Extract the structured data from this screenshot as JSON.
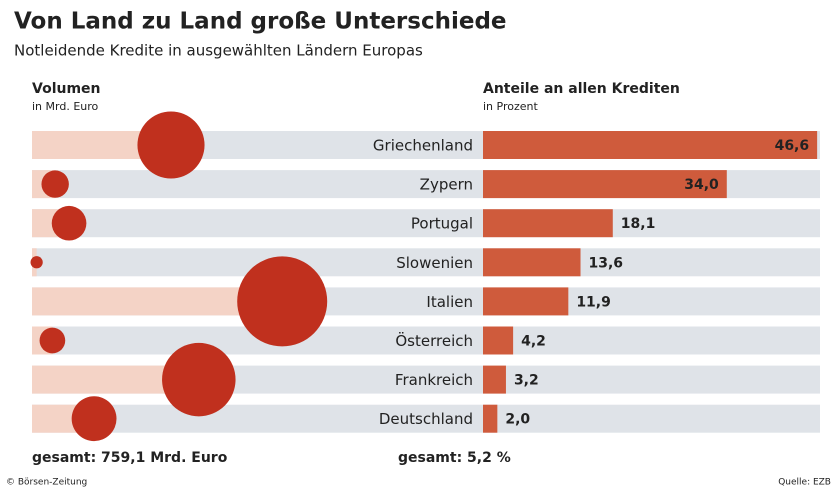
{
  "chart_data": {
    "type": "bar",
    "title": "Von Land zu Land große Unterschiede",
    "subtitle": "Notleidende Kredite in ausgewählten Ländern Europas",
    "categories": [
      "Griechenland",
      "Zypern",
      "Portugal",
      "Slowenien",
      "Italien",
      "Österreich",
      "Frankreich",
      "Deutschland"
    ],
    "series": [
      {
        "name": "Volumen",
        "unit": "in Mrd. Euro",
        "type": "bubble",
        "color": "#c0301e",
        "bar_color": "#f4d3c6",
        "values": [
          150,
          25,
          40,
          5,
          270,
          22,
          180,
          67
        ],
        "xlim": [
          0,
          300
        ],
        "total": "gesamt: 759,1 Mrd. Euro"
      },
      {
        "name": "Anteile an allen Krediten",
        "unit": "in Prozent",
        "type": "bar",
        "color": "#cf5b3c",
        "values": [
          46.6,
          34.0,
          18.1,
          13.6,
          11.9,
          4.2,
          3.2,
          2.0
        ],
        "value_labels": [
          "46,6",
          "34,0",
          "18,1",
          "13,6",
          "11,9",
          "4,2",
          "3,2",
          "2,0"
        ],
        "xlim": [
          0,
          47
        ],
        "total": "gesamt: 5,2 %"
      }
    ],
    "credit": "© Börsen-Zeitung",
    "source": "Quelle: EZB"
  }
}
